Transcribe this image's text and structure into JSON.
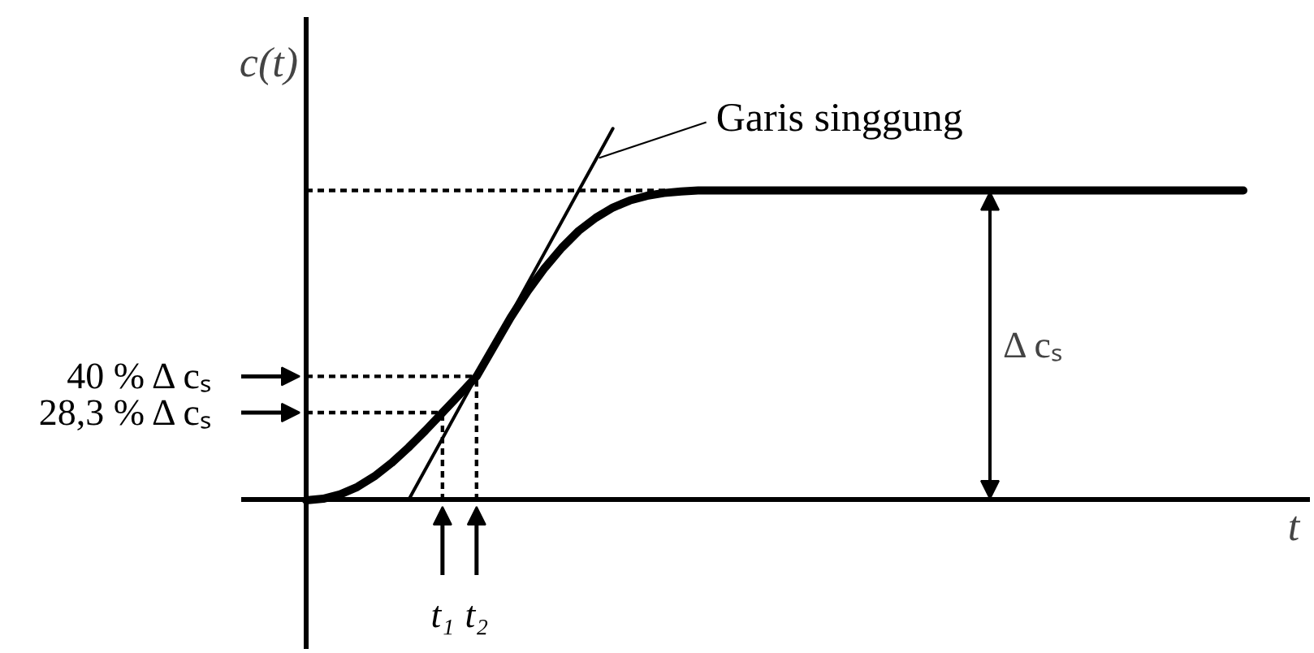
{
  "chart_data": {
    "type": "line",
    "ylabel": "c(t)",
    "xlabel": "t",
    "categories": [
      null,
      null,
      null,
      null,
      null,
      null,
      null,
      null,
      "t₁",
      null,
      "t₂",
      null,
      null,
      null,
      null,
      null,
      null,
      null,
      null,
      null,
      null,
      null,
      null,
      null,
      null,
      null,
      null,
      null,
      null,
      null,
      null,
      null,
      null,
      null,
      null,
      null,
      null,
      null,
      null,
      null,
      null,
      null,
      null,
      null,
      null,
      null,
      null,
      null,
      null,
      null,
      null,
      null,
      null,
      null,
      null,
      null
    ],
    "series": [
      {
        "color": "#000000",
        "values": [
          0,
          0.5,
          1.9,
          4.3,
          7.7,
          12,
          17,
          22.5,
          28.3,
          34.1,
          40,
          49.5,
          59,
          67.5,
          75,
          81.5,
          87,
          91.2,
          94.5,
          96.8,
          98.3,
          99.2,
          99.7,
          100,
          100,
          100,
          100,
          100,
          100,
          100,
          100,
          100,
          100,
          100,
          100,
          100,
          100,
          100,
          100,
          100,
          100,
          100,
          100,
          100,
          100,
          100,
          100,
          100,
          100,
          100,
          100,
          100,
          100,
          100,
          100,
          100
        ]
      },
      {
        "type": "line",
        "name": "Garis singgung",
        "color": "#000000",
        "values": [
          null,
          null,
          null,
          null,
          null,
          null,
          0,
          10,
          20,
          30,
          40,
          50,
          60,
          70,
          80,
          90,
          100,
          110,
          120,
          null,
          null,
          null,
          null,
          null,
          null,
          null,
          null,
          null,
          null,
          null,
          null,
          null,
          null,
          null,
          null,
          null,
          null,
          null,
          null,
          null,
          null,
          null,
          null,
          null,
          null,
          null,
          null,
          null,
          null,
          null,
          null,
          null,
          null,
          null,
          null,
          null
        ]
      }
    ],
    "ylim": [
      -48,
      156
    ],
    "yticks": [
      {
        "value": 28.3,
        "label": "28,3 % Δ cₛ"
      },
      {
        "value": 40,
        "label": "40 % Δ cₛ"
      }
    ],
    "ref_lines": [
      {
        "axis": "y",
        "value": 100,
        "line_style": "dashed"
      },
      {
        "axis": "y",
        "value": 40,
        "line_style": "dashed"
      },
      {
        "axis": "y",
        "value": 28.3,
        "line_style": "dashed"
      },
      {
        "axis": "x",
        "value": "t₂",
        "line_style": "dashed"
      },
      {
        "axis": "x",
        "value": "t₁",
        "line_style": "dashed"
      }
    ],
    "annotations": [
      "Δ cₛ"
    ]
  }
}
